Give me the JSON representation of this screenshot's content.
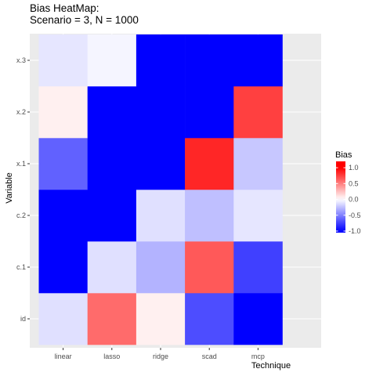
{
  "chart_data": {
    "type": "heatmap",
    "title": "Bias HeatMap:",
    "subtitle": "Scenario = 3, N = 1000",
    "xlabel": "Technique",
    "ylabel": "Variable",
    "x_categories": [
      "linear",
      "lasso",
      "ridge",
      "scad",
      "mcp"
    ],
    "y_categories": [
      "id",
      "c.1",
      "c.2",
      "x.1",
      "x.2",
      "x.3"
    ],
    "values": {
      "x.3": [
        -0.1,
        -0.04,
        -1.0,
        -1.0,
        -1.0
      ],
      "x.2": [
        0.06,
        -1.0,
        -1.0,
        -1.0,
        0.75
      ],
      "x.1": [
        -0.62,
        -1.0,
        -1.0,
        0.85,
        -0.22
      ],
      "c.2": [
        -1.0,
        -1.0,
        -0.12,
        -0.25,
        -0.1
      ],
      "c.1": [
        -1.0,
        -0.12,
        -0.3,
        0.65,
        -0.75
      ],
      "id": [
        -0.12,
        0.58,
        0.06,
        -0.7,
        -1.0
      ]
    },
    "legend": {
      "title": "Bias",
      "ticks": [
        "1.0",
        "0.5",
        "0.0",
        "-0.5",
        "-1.0"
      ],
      "tick_values": [
        1.0,
        0.5,
        0.0,
        -0.5,
        -1.0
      ],
      "range": [
        -1.05,
        1.2
      ],
      "placement": "right"
    },
    "colors": {
      "low": "#0000ff",
      "mid": "#ffffff",
      "high": "#ff0000",
      "panel_background": "#ebebeb",
      "grid": "#ffffff",
      "tick_text": "#4d4d4d"
    },
    "grid": true
  }
}
